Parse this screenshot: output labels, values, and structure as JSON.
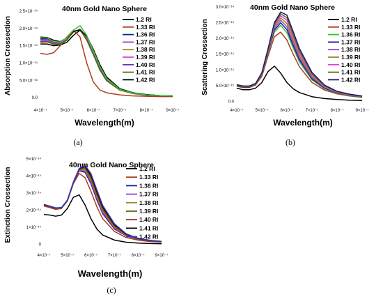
{
  "chart_data": [
    {
      "type": "line",
      "title": "40nm Gold Nano Sphere",
      "xlabel": "Wavelength(m)",
      "ylabel": "Absorption Crossection",
      "caption": "(a)",
      "xlim": [
        4e-07,
        9e-07
      ],
      "ylim": [
        -2e-15,
        2.5e-14
      ],
      "xticks": [
        4e-07,
        5e-07,
        6e-07,
        7e-07,
        8e-07,
        9e-07
      ],
      "xtick_labels": [
        "4×10⁻⁷",
        "5×10⁻⁷",
        "6×10⁻⁷",
        "7×10⁻⁷",
        "8×10⁻⁷",
        "9×10⁻⁷"
      ],
      "yticks": [
        0,
        5e-15,
        1e-14,
        1.5e-14,
        2e-14,
        2.5e-14
      ],
      "ytick_labels": [
        "0.0",
        "5.0×10⁻¹⁵",
        "1.0×10⁻¹⁴",
        "1.5×10⁻¹⁴",
        "2.0×10⁻¹⁴",
        "2.5×10⁻¹⁴"
      ],
      "legend_position": "top-right",
      "x": [
        4e-07,
        4.25e-07,
        4.5e-07,
        4.75e-07,
        5e-07,
        5.25e-07,
        5.5e-07,
        5.75e-07,
        6e-07,
        6.25e-07,
        6.5e-07,
        7e-07,
        7.5e-07,
        8e-07,
        8.5e-07,
        9e-07
      ],
      "series": [
        {
          "name": "1.2 RI",
          "color": "#000000",
          "values": [
            1.55e-14,
            1.55e-14,
            1.5e-14,
            1.52e-14,
            1.6e-14,
            1.8e-14,
            1.95e-14,
            1.7e-14,
            1.25e-14,
            8e-15,
            5e-15,
            2.2e-15,
            1.2e-15,
            7e-16,
            5e-16,
            4e-16
          ]
        },
        {
          "name": "1.33 RI",
          "color": "#b03a1a",
          "values": [
            1.28e-14,
            1.25e-14,
            1.3e-14,
            1.5e-14,
            1.75e-14,
            1.95e-14,
            1.75e-14,
            1e-14,
            4.5e-15,
            2.2e-15,
            1.4e-15,
            8e-16,
            5e-16,
            4e-16,
            3e-16,
            3e-16
          ]
        },
        {
          "name": "1.36 RI",
          "color": "#1a1aa0",
          "values": [
            1.7e-14,
            1.7e-14,
            1.6e-14,
            1.6e-14,
            1.7e-14,
            1.9e-14,
            1.98e-14,
            1.75e-14,
            1.35e-14,
            9e-15,
            5.6e-15,
            2.4e-15,
            1.3e-15,
            8e-16,
            6e-16,
            5e-16
          ]
        },
        {
          "name": "1.37 RI",
          "color": "#9a40c8",
          "values": [
            1.67e-14,
            1.68e-14,
            1.58e-14,
            1.58e-14,
            1.7e-14,
            1.9e-14,
            1.98e-14,
            1.73e-14,
            1.32e-14,
            8.8e-15,
            5.4e-15,
            2.4e-15,
            1.3e-15,
            8e-16,
            6e-16,
            5e-16
          ]
        },
        {
          "name": "1.38 RI",
          "color": "#9a8a20",
          "values": [
            1.66e-14,
            1.66e-14,
            1.57e-14,
            1.57e-14,
            1.69e-14,
            1.9e-14,
            1.98e-14,
            1.72e-14,
            1.3e-14,
            8.6e-15,
            5.3e-15,
            2.3e-15,
            1.2e-15,
            8e-16,
            6e-16,
            5e-16
          ]
        },
        {
          "name": "1.39 RI",
          "color": "#e040e0",
          "values": [
            1.64e-14,
            1.65e-14,
            1.56e-14,
            1.56e-14,
            1.68e-14,
            1.9e-14,
            1.97e-14,
            1.7e-14,
            1.28e-14,
            8.4e-15,
            5.2e-15,
            2.3e-15,
            1.2e-15,
            8e-16,
            6e-16,
            5e-16
          ]
        },
        {
          "name": "1.40 RI",
          "color": "#6a2ab8",
          "values": [
            1.62e-14,
            1.63e-14,
            1.55e-14,
            1.55e-14,
            1.67e-14,
            1.9e-14,
            1.97e-14,
            1.68e-14,
            1.26e-14,
            8.2e-15,
            5e-15,
            2.2e-15,
            1.2e-15,
            8e-16,
            6e-16,
            5e-16
          ]
        },
        {
          "name": "1.41 RI",
          "color": "#5a6a10",
          "values": [
            1.6e-14,
            1.61e-14,
            1.54e-14,
            1.54e-14,
            1.66e-14,
            1.9e-14,
            1.97e-14,
            1.66e-14,
            1.24e-14,
            8e-15,
            4.9e-15,
            2.2e-15,
            1.2e-15,
            8e-16,
            6e-16,
            5e-16
          ]
        },
        {
          "name": "1.42 RI",
          "color": "#000000",
          "values": [
            1.75e-14,
            1.74e-14,
            1.66e-14,
            1.62e-14,
            1.72e-14,
            1.92e-14,
            1.95e-14,
            1.78e-14,
            1.4e-14,
            9.5e-15,
            6e-15,
            2.6e-15,
            1.4e-15,
            9e-16,
            6e-16,
            5e-16
          ]
        },
        {
          "name": "",
          "color": "#30c830",
          "values": [
            1.73e-14,
            1.73e-14,
            1.62e-14,
            1.61e-14,
            1.72e-14,
            1.95e-14,
            2.08e-14,
            1.8e-14,
            1.36e-14,
            9e-15,
            5.6e-15,
            2.4e-15,
            1.3e-15,
            8e-16,
            6e-16,
            5e-16
          ]
        }
      ]
    },
    {
      "type": "line",
      "title": "40nm Gold Nano Sphere",
      "xlabel": "Wavelength(m)",
      "ylabel": "Scattering Crossection",
      "caption": "(b)",
      "xlim": [
        4e-07,
        9e-07
      ],
      "ylim": [
        -1e-15,
        3e-14
      ],
      "xticks": [
        4e-07,
        5e-07,
        6e-07,
        7e-07,
        8e-07,
        9e-07
      ],
      "xtick_labels": [
        "4×10⁻⁷",
        "5×10⁻⁷",
        "6×10⁻⁷",
        "7×10⁻⁷",
        "8×10⁻⁷",
        "9×10⁻⁷"
      ],
      "yticks": [
        0,
        5e-15,
        1e-14,
        1.5e-14,
        2e-14,
        2.5e-14,
        3e-14
      ],
      "ytick_labels": [
        "0.0",
        "5.0×10⁻¹⁵",
        "1.0×10⁻¹⁴",
        "1.5×10⁻¹⁴",
        "2.0×10⁻¹⁴",
        "2.5×10⁻¹⁴",
        "3.0×10⁻¹⁴"
      ],
      "legend_position": "top-right",
      "x": [
        4e-07,
        4.25e-07,
        4.5e-07,
        4.75e-07,
        5e-07,
        5.25e-07,
        5.5e-07,
        5.75e-07,
        6e-07,
        6.25e-07,
        6.5e-07,
        7e-07,
        7.5e-07,
        8e-07,
        8.5e-07,
        9e-07
      ],
      "series": [
        {
          "name": "1.2 RI",
          "color": "#000000",
          "values": [
            4.2e-15,
            3.7e-15,
            3.7e-15,
            4.2e-15,
            6e-15,
            9.5e-15,
            1.12e-14,
            9e-15,
            6e-15,
            4e-15,
            2.8e-15,
            1.5e-15,
            9e-16,
            6e-16,
            4e-16,
            3e-16
          ]
        },
        {
          "name": "1.33 RI",
          "color": "#b03a1a",
          "values": [
            4.8e-15,
            4.4e-15,
            4.4e-15,
            5.2e-15,
            8e-15,
            1.45e-14,
            2.05e-14,
            2.2e-14,
            1.95e-14,
            1.5e-14,
            1.1e-14,
            6e-15,
            3.6e-15,
            2.4e-15,
            1.7e-15,
            1.3e-15
          ]
        },
        {
          "name": "1.36 RI",
          "color": "#30c830",
          "values": [
            5e-15,
            4.6e-15,
            4.6e-15,
            5.4e-15,
            8.5e-15,
            1.55e-14,
            2.2e-14,
            2.42e-14,
            2.18e-14,
            1.7e-14,
            1.25e-14,
            6.8e-15,
            4e-15,
            2.6e-15,
            1.8e-15,
            1.4e-15
          ]
        },
        {
          "name": "1.37 RI",
          "color": "#1a1aa0",
          "values": [
            5e-15,
            4.6e-15,
            4.6e-15,
            5.4e-15,
            8.6e-15,
            1.58e-14,
            2.26e-14,
            2.5e-14,
            2.28e-14,
            1.78e-14,
            1.32e-14,
            7.2e-15,
            4.2e-15,
            2.7e-15,
            1.9e-15,
            1.4e-15
          ]
        },
        {
          "name": "1.38 RI",
          "color": "#9a40c8",
          "values": [
            5.1e-15,
            4.7e-15,
            4.7e-15,
            5.5e-15,
            8.7e-15,
            1.6e-14,
            2.32e-14,
            2.58e-14,
            2.38e-14,
            1.86e-14,
            1.38e-14,
            7.6e-15,
            4.4e-15,
            2.8e-15,
            2e-15,
            1.5e-15
          ]
        },
        {
          "name": "1.39 RI",
          "color": "#9a8a20",
          "values": [
            5.1e-15,
            4.7e-15,
            4.7e-15,
            5.5e-15,
            8.8e-15,
            1.62e-14,
            2.38e-14,
            2.65e-14,
            2.48e-14,
            1.95e-14,
            1.45e-14,
            8e-15,
            4.6e-15,
            2.9e-15,
            2e-15,
            1.5e-15
          ]
        },
        {
          "name": "1.40 RI",
          "color": "#e040e0",
          "values": [
            5.2e-15,
            4.8e-15,
            4.8e-15,
            5.6e-15,
            8.9e-15,
            1.64e-14,
            2.42e-14,
            2.72e-14,
            2.58e-14,
            2.05e-14,
            1.52e-14,
            8.4e-15,
            4.8e-15,
            3e-15,
            2.1e-15,
            1.6e-15
          ]
        },
        {
          "name": "1.41 RI",
          "color": "#5a6a10",
          "values": [
            5.2e-15,
            4.8e-15,
            4.8e-15,
            5.6e-15,
            9e-15,
            1.66e-14,
            2.46e-14,
            2.78e-14,
            2.66e-14,
            2.13e-14,
            1.6e-14,
            8.8e-15,
            5e-15,
            3.1e-15,
            2.2e-15,
            1.6e-15
          ]
        },
        {
          "name": "1.42 RI",
          "color": "#1a1a70",
          "values": [
            5.3e-15,
            4.9e-15,
            4.9e-15,
            5.7e-15,
            9.1e-15,
            1.68e-14,
            2.5e-14,
            2.84e-14,
            2.74e-14,
            2.22e-14,
            1.68e-14,
            9.2e-15,
            5.2e-15,
            3.2e-15,
            2.3e-15,
            1.7e-15
          ]
        }
      ]
    },
    {
      "type": "line",
      "title": "40nm Gold Nano Sphere",
      "xlabel": "Wavelength(m)",
      "ylabel": "Extinction Crossection",
      "caption": "(c)",
      "xlim": [
        4e-07,
        9e-07
      ],
      "ylim": [
        -3e-15,
        5e-14
      ],
      "xticks": [
        4e-07,
        5e-07,
        6e-07,
        7e-07,
        8e-07,
        9e-07
      ],
      "xtick_labels": [
        "4×10⁻⁷",
        "5×10⁻⁷",
        "6×10⁻⁷",
        "7×10⁻⁷",
        "8×10⁻⁷",
        "9×10⁻⁷"
      ],
      "yticks": [
        0,
        1e-14,
        2e-14,
        3e-14,
        4e-14,
        5e-14
      ],
      "ytick_labels": [
        "0",
        "1×10⁻¹⁴",
        "2×10⁻¹⁴",
        "3×10⁻¹⁴",
        "4×10⁻¹⁴",
        "5×10⁻¹⁴"
      ],
      "legend_position": "top-right",
      "x": [
        4e-07,
        4.25e-07,
        4.5e-07,
        4.75e-07,
        5e-07,
        5.25e-07,
        5.5e-07,
        5.75e-07,
        6e-07,
        6.25e-07,
        6.5e-07,
        7e-07,
        7.5e-07,
        8e-07,
        8.5e-07,
        9e-07
      ],
      "series": [
        {
          "name": "1.2 RI",
          "color": "#000000",
          "values": [
            1.75e-14,
            1.72e-14,
            1.65e-14,
            1.72e-14,
            2.1e-14,
            2.75e-14,
            2.9e-14,
            2.3e-14,
            1.5e-14,
            9e-15,
            5.5e-15,
            2.5e-15,
            1.3e-15,
            8e-16,
            5e-16,
            4e-16
          ]
        },
        {
          "name": "1.33 RI",
          "color": "#b03a1a",
          "values": [
            2.25e-14,
            2.15e-14,
            2.05e-14,
            2.1e-14,
            2.55e-14,
            3.55e-14,
            4.15e-14,
            3.9e-14,
            3.1e-14,
            2.2e-14,
            1.5e-14,
            7.5e-15,
            4e-15,
            2.5e-15,
            1.7e-15,
            1.3e-15
          ]
        },
        {
          "name": "1.36 RI",
          "color": "#1a1aa0",
          "values": [
            2.3e-14,
            2.2e-14,
            2.1e-14,
            2.12e-14,
            2.55e-14,
            3.6e-14,
            4.3e-14,
            4.22e-14,
            3.55e-14,
            2.6e-14,
            1.8e-14,
            9e-15,
            5e-15,
            3e-15,
            2e-15,
            1.5e-15
          ]
        },
        {
          "name": "1.37 RI",
          "color": "#9a40c8",
          "values": [
            2.3e-14,
            2.2e-14,
            2.1e-14,
            2.12e-14,
            2.55e-14,
            3.6e-14,
            4.33e-14,
            4.3e-14,
            3.65e-14,
            2.7e-14,
            1.88e-14,
            9.5e-15,
            5.2e-15,
            3.1e-15,
            2.1e-15,
            1.5e-15
          ]
        },
        {
          "name": "1.38 RI",
          "color": "#9a8a20",
          "values": [
            2.31e-14,
            2.21e-14,
            2.11e-14,
            2.13e-14,
            2.56e-14,
            3.61e-14,
            4.36e-14,
            4.38e-14,
            3.76e-14,
            2.8e-14,
            1.96e-14,
            1e-14,
            5.4e-15,
            3.2e-15,
            2.2e-15,
            1.6e-15
          ]
        },
        {
          "name": "1.39 RI",
          "color": "#5a6a10",
          "values": [
            2.32e-14,
            2.22e-14,
            2.12e-14,
            2.14e-14,
            2.57e-14,
            3.62e-14,
            4.38e-14,
            4.45e-14,
            3.86e-14,
            2.9e-14,
            2.04e-14,
            1.05e-14,
            5.6e-15,
            3.3e-15,
            2.2e-15,
            1.6e-15
          ]
        },
        {
          "name": "1.40 RI",
          "color": "#9a2a1a",
          "values": [
            2.32e-14,
            2.22e-14,
            2.12e-14,
            2.14e-14,
            2.57e-14,
            3.62e-14,
            4.4e-14,
            4.52e-14,
            3.96e-14,
            3e-14,
            2.12e-14,
            1.1e-14,
            5.8e-15,
            3.4e-15,
            2.3e-15,
            1.7e-15
          ]
        },
        {
          "name": "1.41 RI",
          "color": "#000000",
          "values": [
            2.33e-14,
            2.23e-14,
            2.13e-14,
            2.15e-14,
            2.58e-14,
            3.63e-14,
            4.42e-14,
            4.58e-14,
            4.06e-14,
            3.1e-14,
            2.2e-14,
            1.15e-14,
            6e-15,
            3.5e-15,
            2.4e-15,
            1.7e-15
          ]
        },
        {
          "name": "1.42 RI",
          "color": "#3a3ab8",
          "values": [
            2.34e-14,
            2.24e-14,
            2.14e-14,
            2.16e-14,
            2.59e-14,
            3.64e-14,
            4.44e-14,
            4.63e-14,
            4.14e-14,
            3.2e-14,
            2.28e-14,
            1.2e-14,
            6.2e-15,
            3.6e-15,
            2.4e-15,
            1.8e-15
          ]
        }
      ]
    }
  ]
}
